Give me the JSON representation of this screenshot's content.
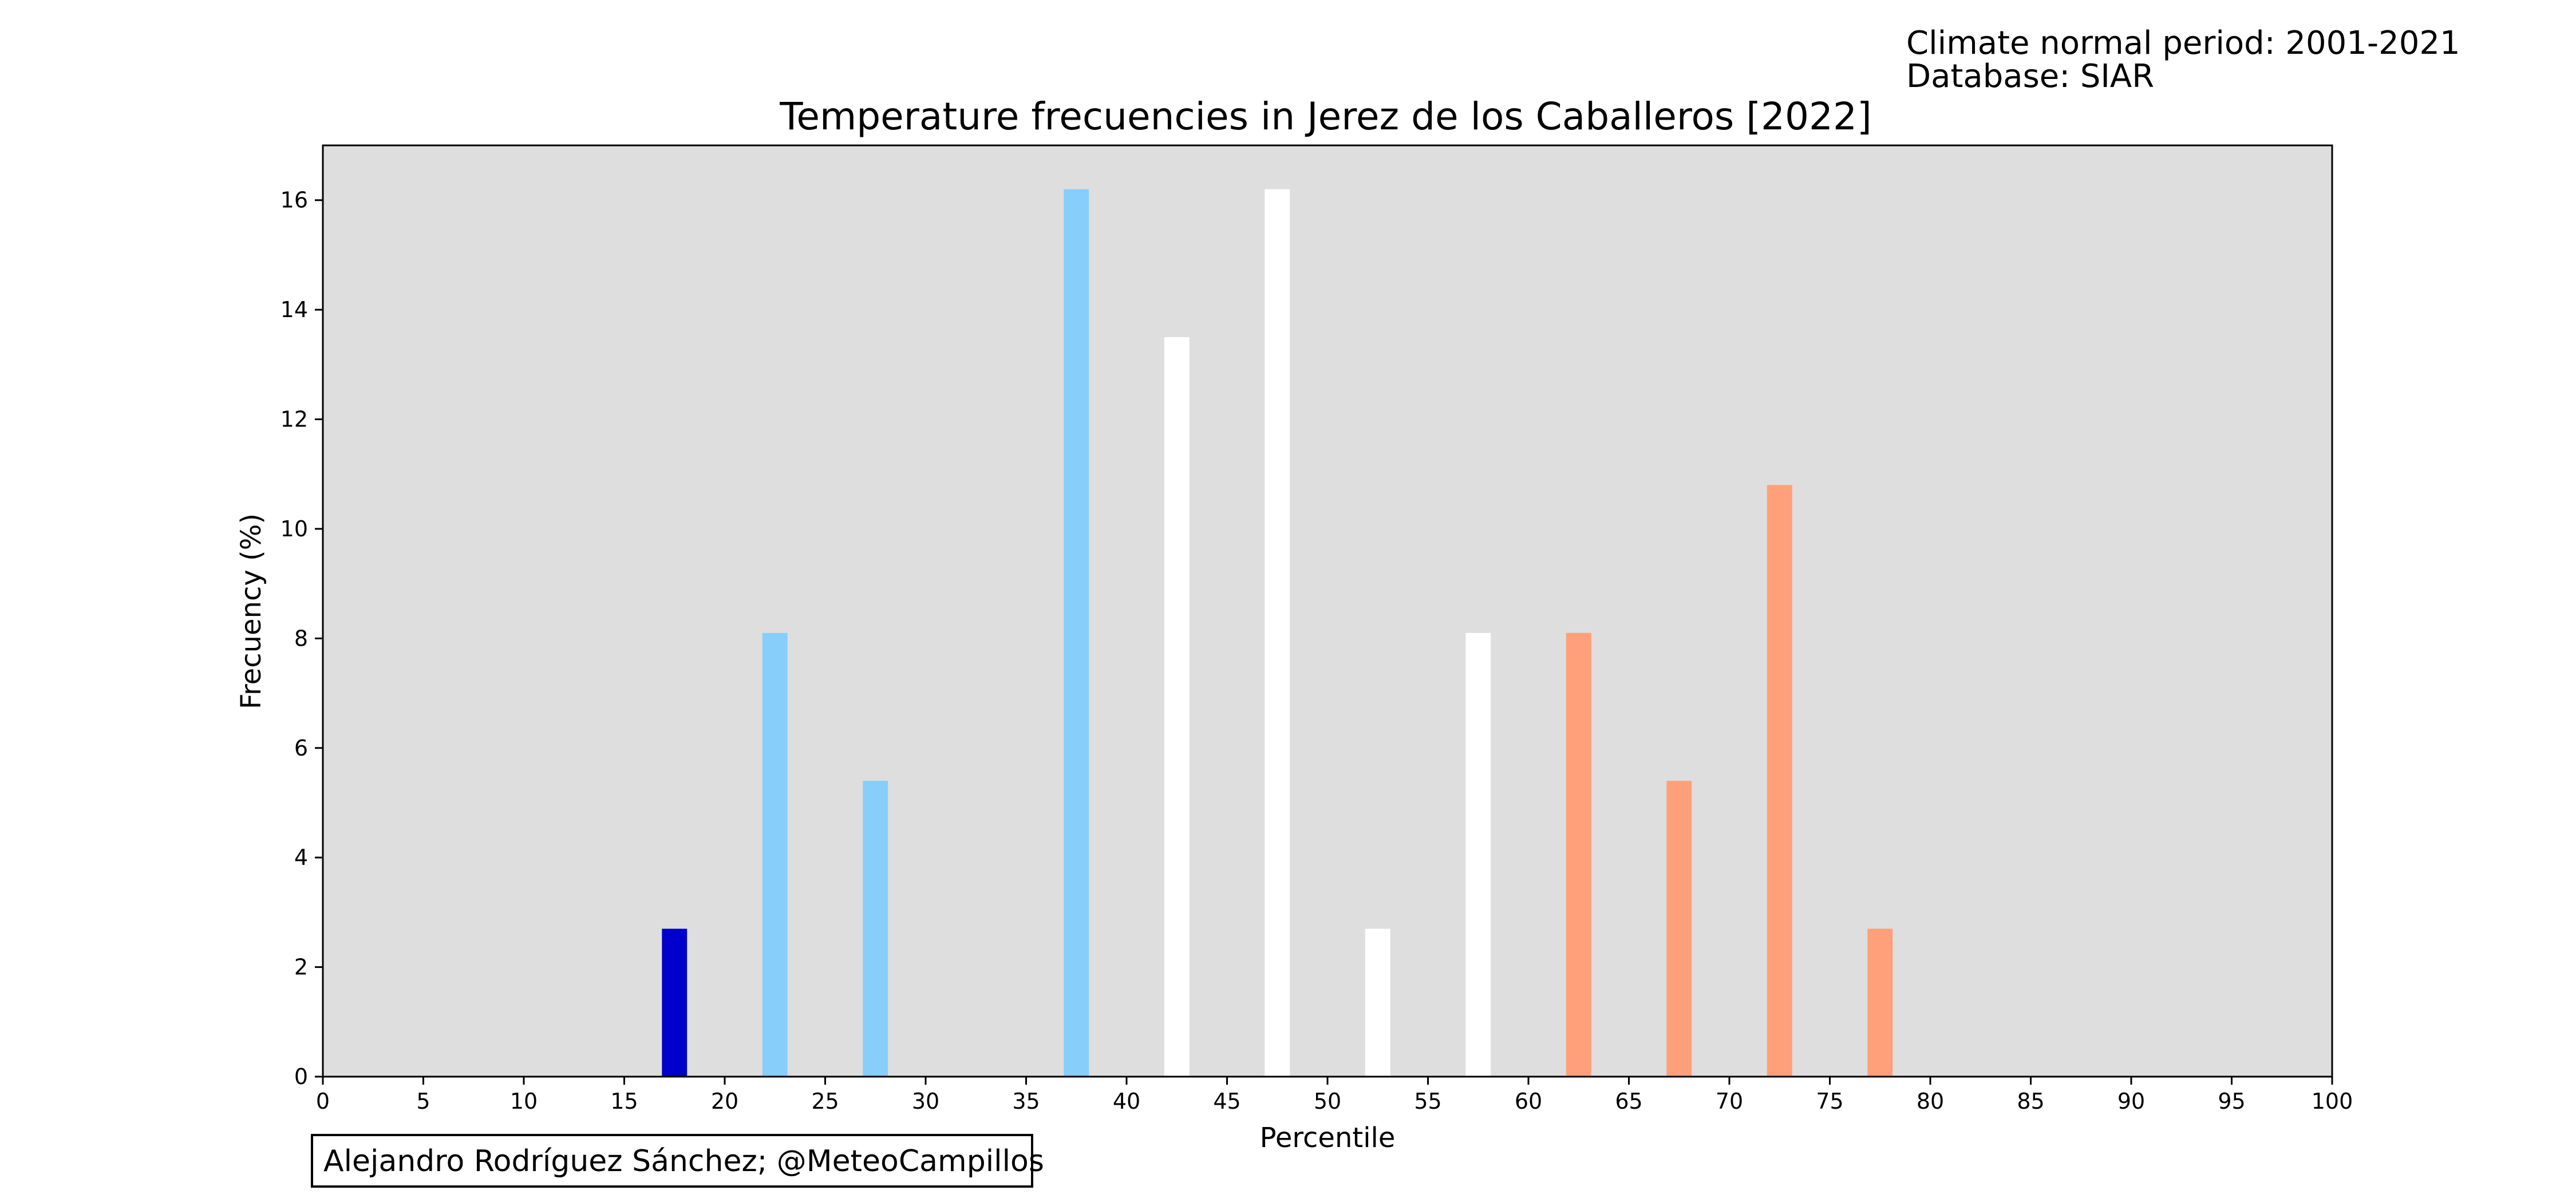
{
  "info": {
    "line1": "Climate normal period: 2001-2021",
    "line2": "Database: SIAR"
  },
  "credit": "Alejandro Rodríguez Sánchez; @MeteoCampillos",
  "chart_data": {
    "type": "bar",
    "title": "Temperature frecuencies in Jerez de los Caballeros [2022]",
    "xlabel": "Percentile",
    "ylabel": "Frecuency (%)",
    "xlim": [
      0,
      100
    ],
    "ylim": [
      0,
      17
    ],
    "xticks": [
      "0",
      "5",
      "10",
      "15",
      "20",
      "25",
      "30",
      "35",
      "40",
      "45",
      "50",
      "55",
      "60",
      "65",
      "70",
      "75",
      "80",
      "85",
      "90",
      "95",
      "100"
    ],
    "yticks": [
      "0",
      "2",
      "4",
      "6",
      "8",
      "10",
      "12",
      "14",
      "16"
    ],
    "grid": false,
    "background": "#dedede",
    "bar_width": 1.25,
    "bars": [
      {
        "x": 17.5,
        "value": 2.7,
        "color": "#0000cd"
      },
      {
        "x": 22.5,
        "value": 8.1,
        "color": "#87cefa"
      },
      {
        "x": 27.5,
        "value": 5.4,
        "color": "#87cefa"
      },
      {
        "x": 37.5,
        "value": 16.2,
        "color": "#87cefa"
      },
      {
        "x": 42.5,
        "value": 13.5,
        "color": "#ffffff"
      },
      {
        "x": 47.5,
        "value": 16.2,
        "color": "#ffffff"
      },
      {
        "x": 52.5,
        "value": 2.7,
        "color": "#ffffff"
      },
      {
        "x": 57.5,
        "value": 8.1,
        "color": "#ffffff"
      },
      {
        "x": 62.5,
        "value": 8.1,
        "color": "#ffa07a"
      },
      {
        "x": 67.5,
        "value": 5.4,
        "color": "#ffa07a"
      },
      {
        "x": 72.5,
        "value": 10.8,
        "color": "#ffa07a"
      },
      {
        "x": 77.5,
        "value": 2.7,
        "color": "#ffa07a"
      }
    ]
  }
}
